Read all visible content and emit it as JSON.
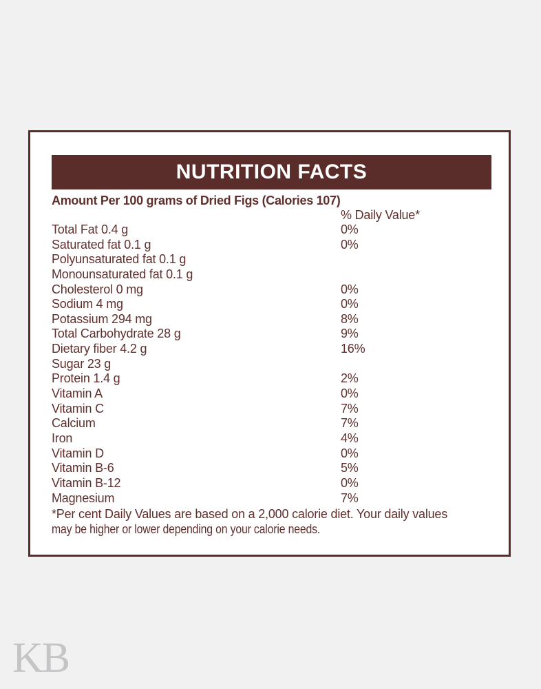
{
  "page": {
    "background_color": "#f1f1f2",
    "watermark": "KB"
  },
  "label": {
    "title": "NUTRITION FACTS",
    "subtitle": "Amount Per 100 grams of Dried Figs (Calories 107)",
    "daily_value_header": "% Daily Value*",
    "rows": [
      {
        "label": "Total Fat 0.4 g",
        "dv": "0%"
      },
      {
        "label": "Saturated fat 0.1 g",
        "dv": "0%"
      },
      {
        "label": "Polyunsaturated fat 0.1 g",
        "dv": ""
      },
      {
        "label": "Monounsaturated fat 0.1 g",
        "dv": ""
      },
      {
        "label": "Cholesterol 0 mg",
        "dv": "0%"
      },
      {
        "label": "Sodium 4 mg",
        "dv": "0%"
      },
      {
        "label": "Potassium 294 mg",
        "dv": "8%"
      },
      {
        "label": "Total Carbohydrate 28 g",
        "dv": "9%"
      },
      {
        "label": "Dietary fiber 4.2 g",
        "dv": "16%"
      },
      {
        "label": "Sugar 23 g",
        "dv": ""
      },
      {
        "label": "Protein 1.4 g",
        "dv": "2%"
      },
      {
        "label": "Vitamin A",
        "dv": "0%"
      },
      {
        "label": "Vitamin C",
        "dv": "7%"
      },
      {
        "label": "Calcium",
        "dv": "7%"
      },
      {
        "label": "Iron",
        "dv": "4%"
      },
      {
        "label": "Vitamin D",
        "dv": "0%"
      },
      {
        "label": "Vitamin B-6",
        "dv": "5%"
      },
      {
        "label": "Vitamin B-12",
        "dv": "0%"
      },
      {
        "label": "Magnesium",
        "dv": "7%"
      }
    ],
    "footnote_line1": "*Per cent Daily Values are based on a 2,000 calorie diet. Your daily values",
    "footnote_line2": "may be higher or lower depending on your calorie needs.",
    "colors": {
      "maroon": "#5a2d2b",
      "body_text": "#5f302d",
      "header_text": "#ffffff",
      "watermark_gray": "#c5c5c7"
    }
  }
}
